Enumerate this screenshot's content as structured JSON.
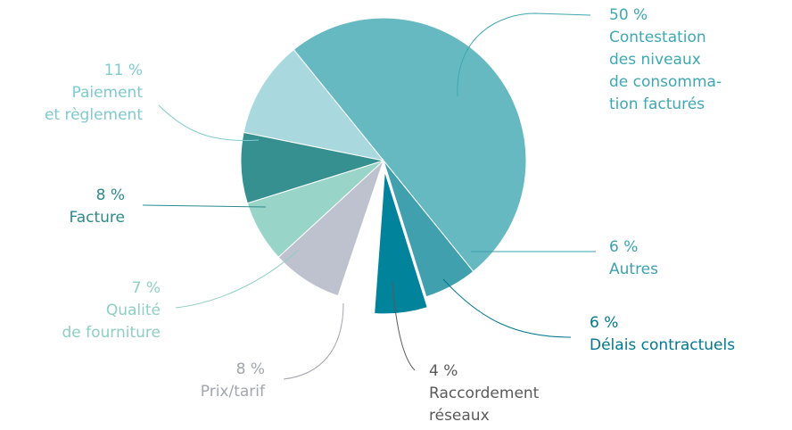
{
  "chart_data": {
    "type": "pie",
    "categories": [
      "Contestation\ndes niveaux\nde consomma-\ntion facturés",
      "Autres",
      "Délais contractuels",
      "Raccordement\nréseaux",
      "Prix/tarif",
      "Qualité\nde fourniture",
      "Facture",
      "Paiement\net règlement"
    ],
    "values": [
      50,
      6,
      6,
      4,
      8,
      7,
      8,
      11
    ],
    "value_labels": [
      "50 %",
      "6 %",
      "6 %",
      "4 %",
      "8 %",
      "7 %",
      "8 %",
      "11 %"
    ],
    "colors": [
      "#66b9c1",
      "#40a0ae",
      "#00839b",
      "#ffffff",
      "#bec1ce",
      "#98d4c7",
      "#36908f",
      "#a9d9df"
    ],
    "label_colors": [
      "#3ea8b2",
      "#3ea1ae",
      "#00788f",
      "#5a5a5a",
      "#a2a5af",
      "#8dcfc2",
      "#2d8a8e",
      "#7fcad1"
    ]
  }
}
